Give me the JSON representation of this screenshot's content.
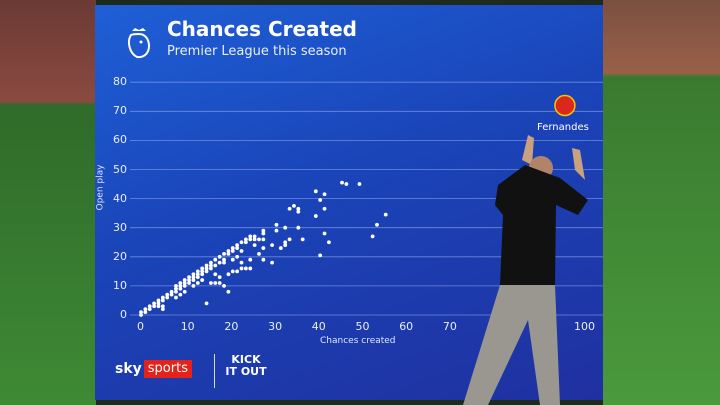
{
  "header": {
    "title": "Chances Created",
    "subtitle": "Premier League this season"
  },
  "branding": {
    "broadcaster_a": "sky",
    "broadcaster_b": "sports",
    "campaign": "KICK IT OUT",
    "league_logo": "premier-league-lion-icon"
  },
  "highlight": {
    "label": "Fernandes",
    "badge": "manchester-united-crest-icon",
    "badge_color": "#da291c"
  },
  "colors": {
    "screen": "#1a44b8",
    "points": "#ffffff",
    "grid": "#8fa8f0"
  },
  "chart_data": {
    "type": "scatter",
    "title": "Chances Created",
    "subtitle": "Premier League this season",
    "xlabel": "Chances created",
    "ylabel": "Open play",
    "xlim": [
      0,
      100
    ],
    "ylim": [
      0,
      80
    ],
    "xticks": [
      "0",
      "10",
      "20",
      "30",
      "40",
      "50",
      "60",
      "70",
      "100"
    ],
    "yticks": [
      "0",
      "10",
      "20",
      "30",
      "40",
      "50",
      "60",
      "70",
      "80"
    ],
    "grid": "horizontal",
    "points": [
      [
        0,
        0
      ],
      [
        0,
        1
      ],
      [
        1,
        1
      ],
      [
        1,
        2
      ],
      [
        2,
        2
      ],
      [
        2,
        3
      ],
      [
        3,
        3
      ],
      [
        3,
        4
      ],
      [
        4,
        4
      ],
      [
        4,
        5
      ],
      [
        5,
        5
      ],
      [
        5,
        6
      ],
      [
        6,
        6
      ],
      [
        6,
        7
      ],
      [
        7,
        7
      ],
      [
        7,
        8
      ],
      [
        8,
        8
      ],
      [
        8,
        9
      ],
      [
        8,
        10
      ],
      [
        9,
        9
      ],
      [
        9,
        10
      ],
      [
        9,
        11
      ],
      [
        10,
        10
      ],
      [
        10,
        11
      ],
      [
        10,
        12
      ],
      [
        11,
        11
      ],
      [
        11,
        12
      ],
      [
        11,
        13
      ],
      [
        12,
        12
      ],
      [
        12,
        13
      ],
      [
        12,
        14
      ],
      [
        13,
        13
      ],
      [
        13,
        14
      ],
      [
        13,
        15
      ],
      [
        14,
        14
      ],
      [
        14,
        15
      ],
      [
        14,
        16
      ],
      [
        15,
        15
      ],
      [
        15,
        16
      ],
      [
        15,
        17
      ],
      [
        16,
        16
      ],
      [
        16,
        17
      ],
      [
        16,
        18
      ],
      [
        17,
        17
      ],
      [
        17,
        19
      ],
      [
        18,
        18
      ],
      [
        18,
        20
      ],
      [
        19,
        19
      ],
      [
        19,
        21
      ],
      [
        20,
        22
      ],
      [
        20,
        21
      ],
      [
        21,
        22
      ],
      [
        21,
        23
      ],
      [
        22,
        23
      ],
      [
        22,
        24
      ],
      [
        23,
        25
      ],
      [
        23,
        22
      ],
      [
        24,
        26
      ],
      [
        24,
        25
      ],
      [
        25,
        27
      ],
      [
        25,
        26
      ],
      [
        26,
        27
      ],
      [
        26,
        26
      ],
      [
        8,
        6
      ],
      [
        9,
        7
      ],
      [
        10,
        8
      ],
      [
        12,
        10
      ],
      [
        13,
        11
      ],
      [
        14,
        12
      ],
      [
        16,
        11
      ],
      [
        17,
        14
      ],
      [
        19,
        18
      ],
      [
        21,
        19
      ],
      [
        22,
        20
      ],
      [
        23,
        18
      ],
      [
        5,
        2
      ],
      [
        4,
        3
      ],
      [
        5,
        3
      ],
      [
        15,
        4
      ],
      [
        20,
        8
      ],
      [
        17,
        11
      ],
      [
        18,
        11
      ],
      [
        18,
        13
      ],
      [
        19,
        10
      ],
      [
        20,
        14
      ],
      [
        21,
        15
      ],
      [
        22,
        15
      ],
      [
        23,
        16
      ],
      [
        24,
        16
      ],
      [
        25,
        16
      ],
      [
        25,
        19
      ],
      [
        26,
        24
      ],
      [
        27,
        21
      ],
      [
        27,
        26
      ],
      [
        28,
        19
      ],
      [
        28,
        23
      ],
      [
        28,
        26
      ],
      [
        28,
        28
      ],
      [
        28,
        29
      ],
      [
        30,
        18
      ],
      [
        30,
        24
      ],
      [
        31,
        29
      ],
      [
        31,
        31
      ],
      [
        32,
        23
      ],
      [
        33,
        24
      ],
      [
        33,
        25
      ],
      [
        33,
        30
      ],
      [
        34,
        26
      ],
      [
        34,
        36.5
      ],
      [
        35,
        37.5
      ],
      [
        36,
        36.5
      ],
      [
        36,
        35.5
      ],
      [
        36,
        30
      ],
      [
        37,
        26
      ],
      [
        40,
        34
      ],
      [
        40,
        42.5
      ],
      [
        41,
        39.5
      ],
      [
        41,
        20.5
      ],
      [
        42,
        41.5
      ],
      [
        42,
        36.5
      ],
      [
        42,
        28
      ],
      [
        43,
        25
      ],
      [
        46,
        45.5
      ],
      [
        47,
        45
      ],
      [
        50,
        45
      ],
      [
        53,
        27
      ],
      [
        54,
        31
      ],
      [
        56,
        34.5
      ]
    ],
    "highlight_point": {
      "label": "Fernandes",
      "x": 97,
      "y": 72
    }
  }
}
